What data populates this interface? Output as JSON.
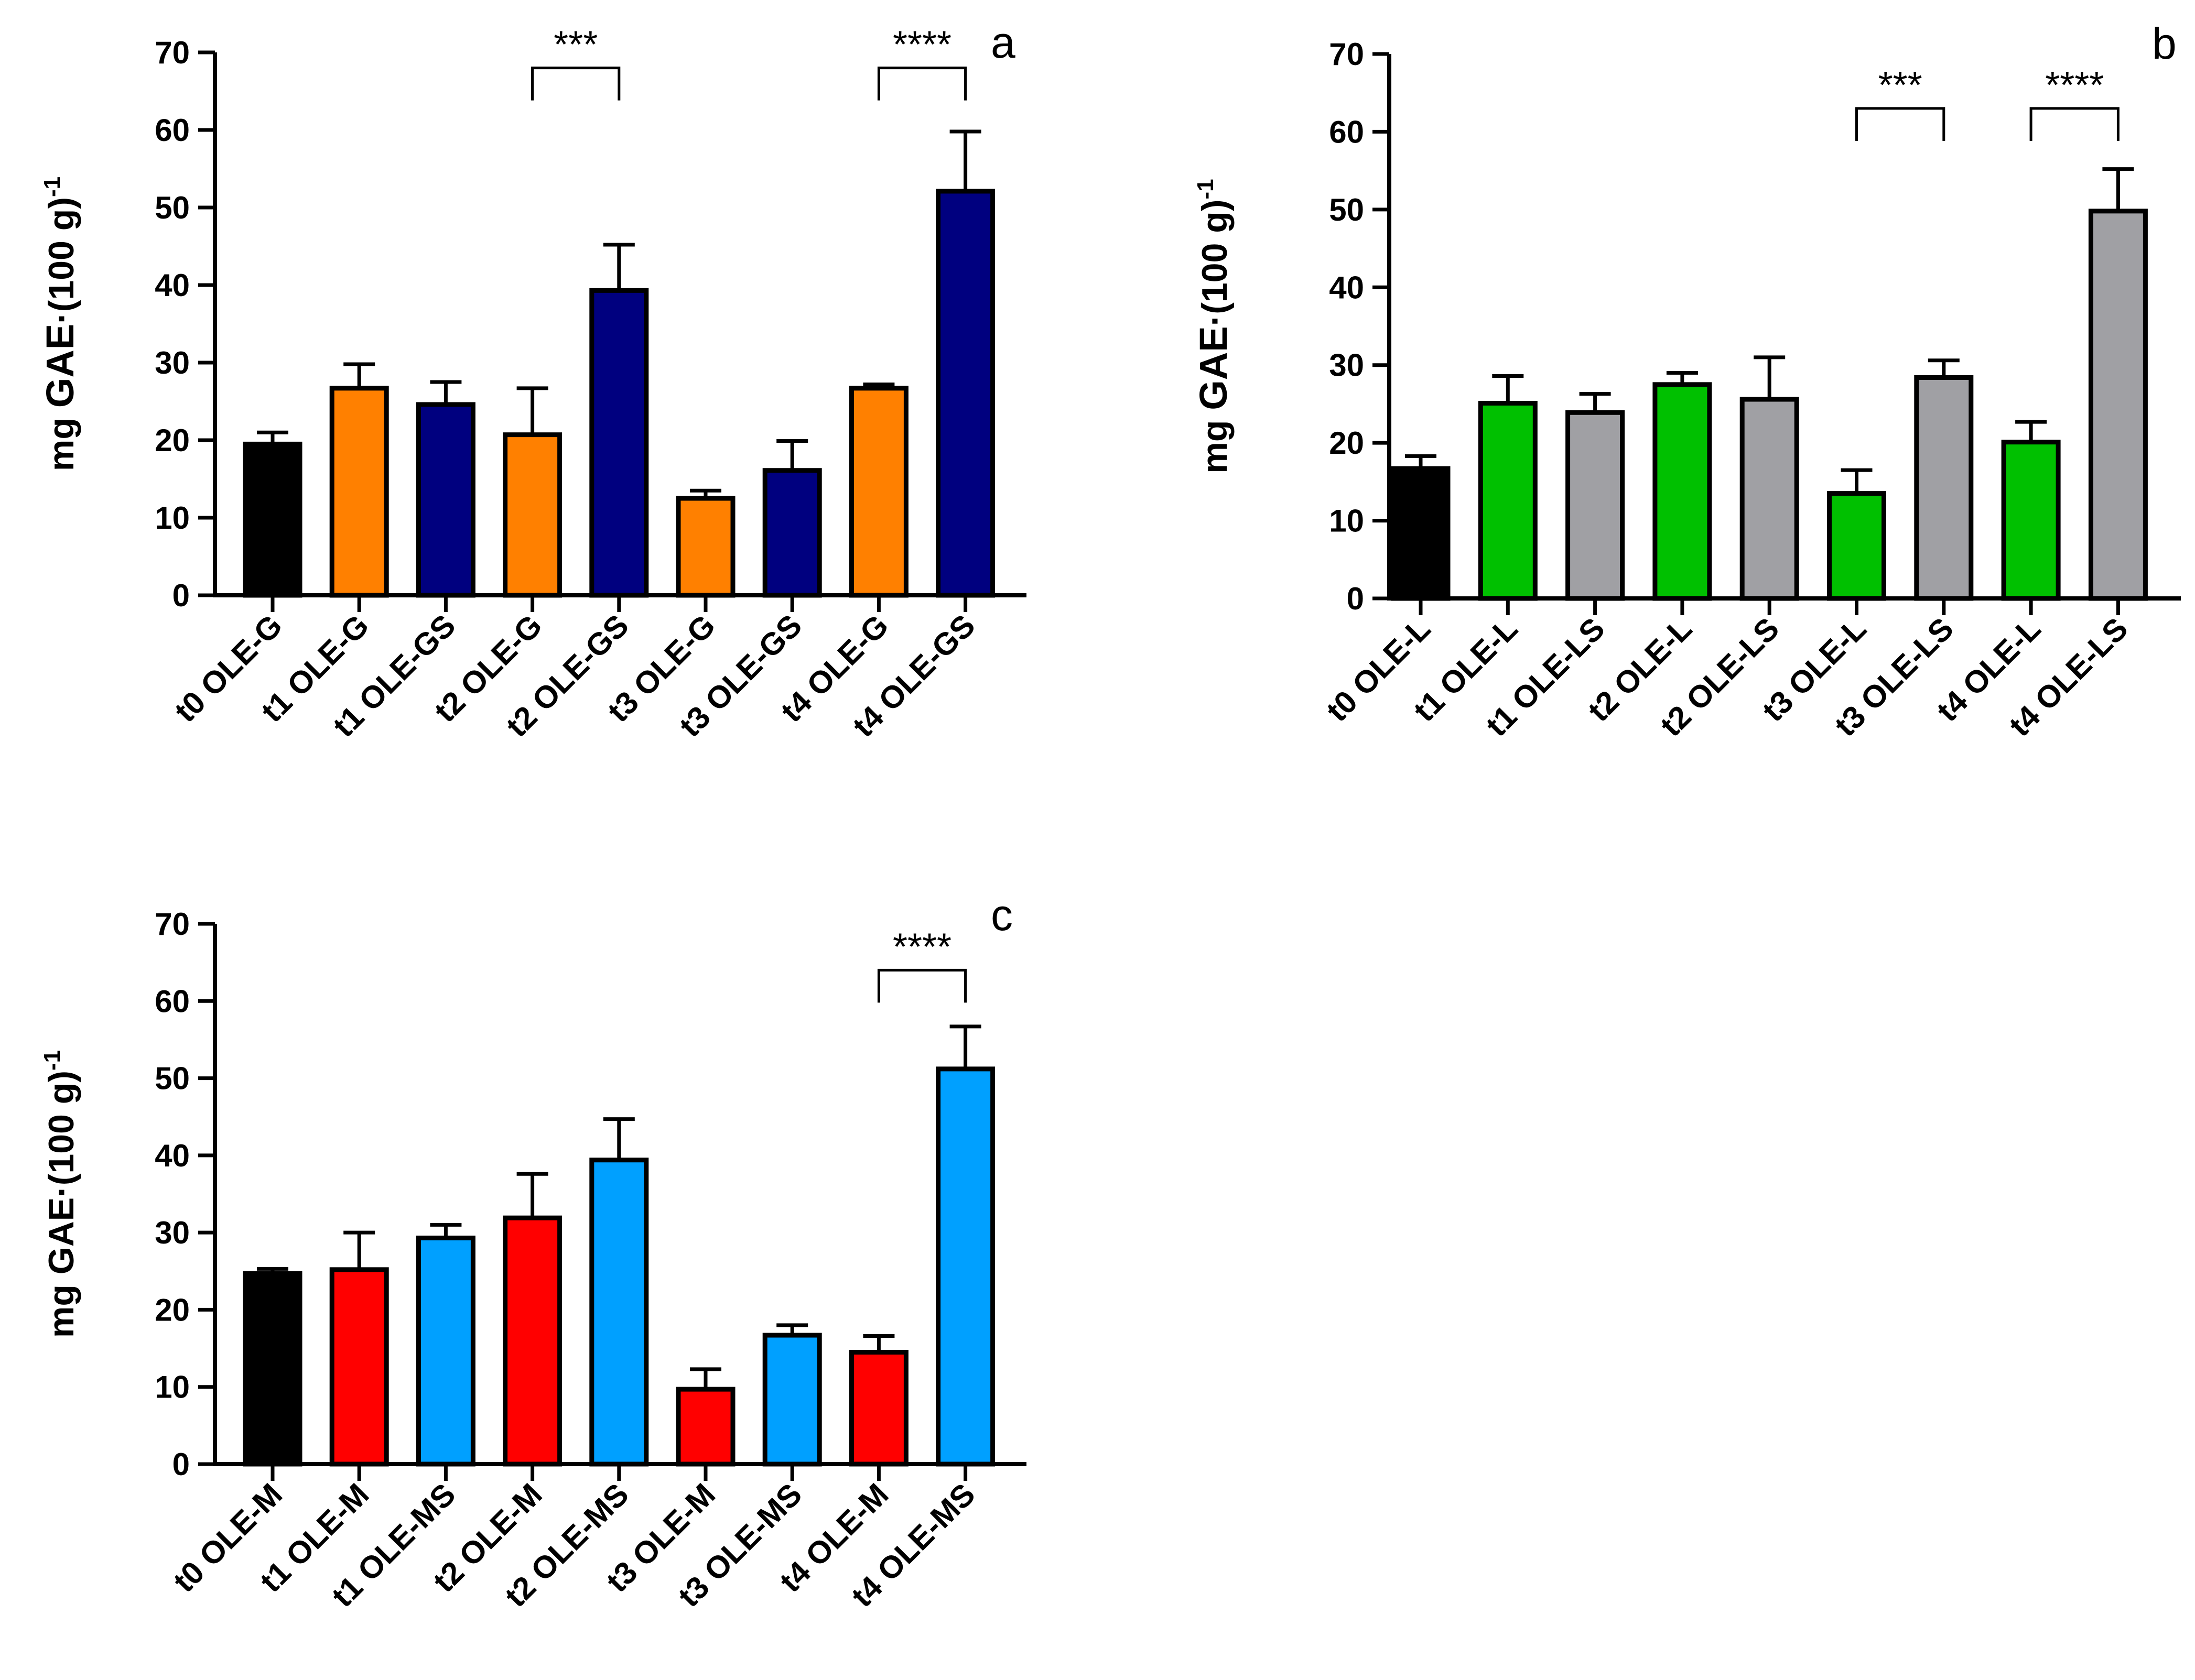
{
  "chart_data": [
    {
      "type": "bar",
      "panel": "a",
      "ylabel_main": "mg ",
      "ylabel_bold": "GAE",
      "ylabel_tail": "·(100 g)",
      "ylabel_sup": "-1",
      "ylim": [
        0,
        70
      ],
      "yticks": [
        "0",
        "10",
        "20",
        "30",
        "40",
        "50",
        "60",
        "70"
      ],
      "categories": [
        "t0 OLE-G",
        "t1 OLE-G",
        "t1 OLE-GS",
        "t2 OLE-G",
        "t2 OLE-GS",
        "t3 OLE-G",
        "t3 OLE-GS",
        "t4 OLE-G",
        "t4 OLE-GS"
      ],
      "values": [
        19.5,
        26.7,
        24.6,
        20.7,
        39.3,
        12.5,
        16.1,
        26.7,
        52.1
      ],
      "errors": [
        1.5,
        3.1,
        2.9,
        6.0,
        5.9,
        1.0,
        3.8,
        0.5,
        7.7
      ],
      "colors": [
        "#000000",
        "#ff8000",
        "#00007f",
        "#ff8000",
        "#00007f",
        "#ff8000",
        "#00007f",
        "#ff8000",
        "#00007f"
      ],
      "significance": [
        {
          "from": 3,
          "to": 4,
          "label": "***",
          "level": 68
        },
        {
          "from": 7,
          "to": 8,
          "label": "****",
          "level": 68
        }
      ]
    },
    {
      "type": "bar",
      "panel": "b",
      "ylabel_main": "mg ",
      "ylabel_bold": "GAE",
      "ylabel_tail": "·(100 g)",
      "ylabel_sup": "-1",
      "ylim": [
        0,
        70
      ],
      "yticks": [
        "0",
        "10",
        "20",
        "30",
        "40",
        "50",
        "60",
        "70"
      ],
      "categories": [
        "t0 OLE-L",
        "t1 OLE-L",
        "t1 OLE-LS",
        "t2 OLE-L",
        "t2 OLE-LS",
        "t3 OLE-L",
        "t3 OLE-LS",
        "t4 OLE-L",
        "t4 OLE-LS"
      ],
      "values": [
        16.7,
        25.1,
        23.9,
        27.5,
        25.6,
        13.5,
        28.4,
        20.1,
        49.8
      ],
      "errors": [
        1.6,
        3.5,
        2.4,
        1.5,
        5.4,
        3.0,
        2.2,
        2.6,
        5.4
      ],
      "colors": [
        "#000000",
        "#00c000",
        "#a0a0a4",
        "#00c000",
        "#a0a0a4",
        "#00c000",
        "#a0a0a4",
        "#00c000",
        "#a0a0a4"
      ],
      "significance": [
        {
          "from": 5,
          "to": 6,
          "label": "***",
          "level": 63
        },
        {
          "from": 7,
          "to": 8,
          "label": "****",
          "level": 63
        }
      ]
    },
    {
      "type": "bar",
      "panel": "c",
      "ylabel_main": "mg GAE",
      "ylabel_bold": "",
      "ylabel_tail": "·(100 g)",
      "ylabel_sup": "-1",
      "ylim": [
        0,
        70
      ],
      "yticks": [
        "0",
        "10",
        "20",
        "30",
        "40",
        "50",
        "60",
        "70"
      ],
      "categories": [
        "t0 OLE-M",
        "t1 OLE-M",
        "t1 OLE-MS",
        "t2 OLE-M",
        "t2 OLE-MS",
        "t3 OLE-M",
        "t3 OLE-MS",
        "t4 OLE-M",
        "t4 OLE-MS"
      ],
      "values": [
        24.7,
        25.2,
        29.3,
        31.9,
        39.4,
        9.7,
        16.7,
        14.5,
        51.2
      ],
      "errors": [
        0.6,
        4.8,
        1.7,
        5.7,
        5.3,
        2.6,
        1.3,
        2.1,
        5.5
      ],
      "colors": [
        "#000000",
        "#ff0000",
        "#00a0ff",
        "#ff0000",
        "#00a0ff",
        "#ff0000",
        "#00a0ff",
        "#ff0000",
        "#00a0ff"
      ],
      "significance": [
        {
          "from": 7,
          "to": 8,
          "label": "****",
          "level": 64
        }
      ]
    }
  ]
}
